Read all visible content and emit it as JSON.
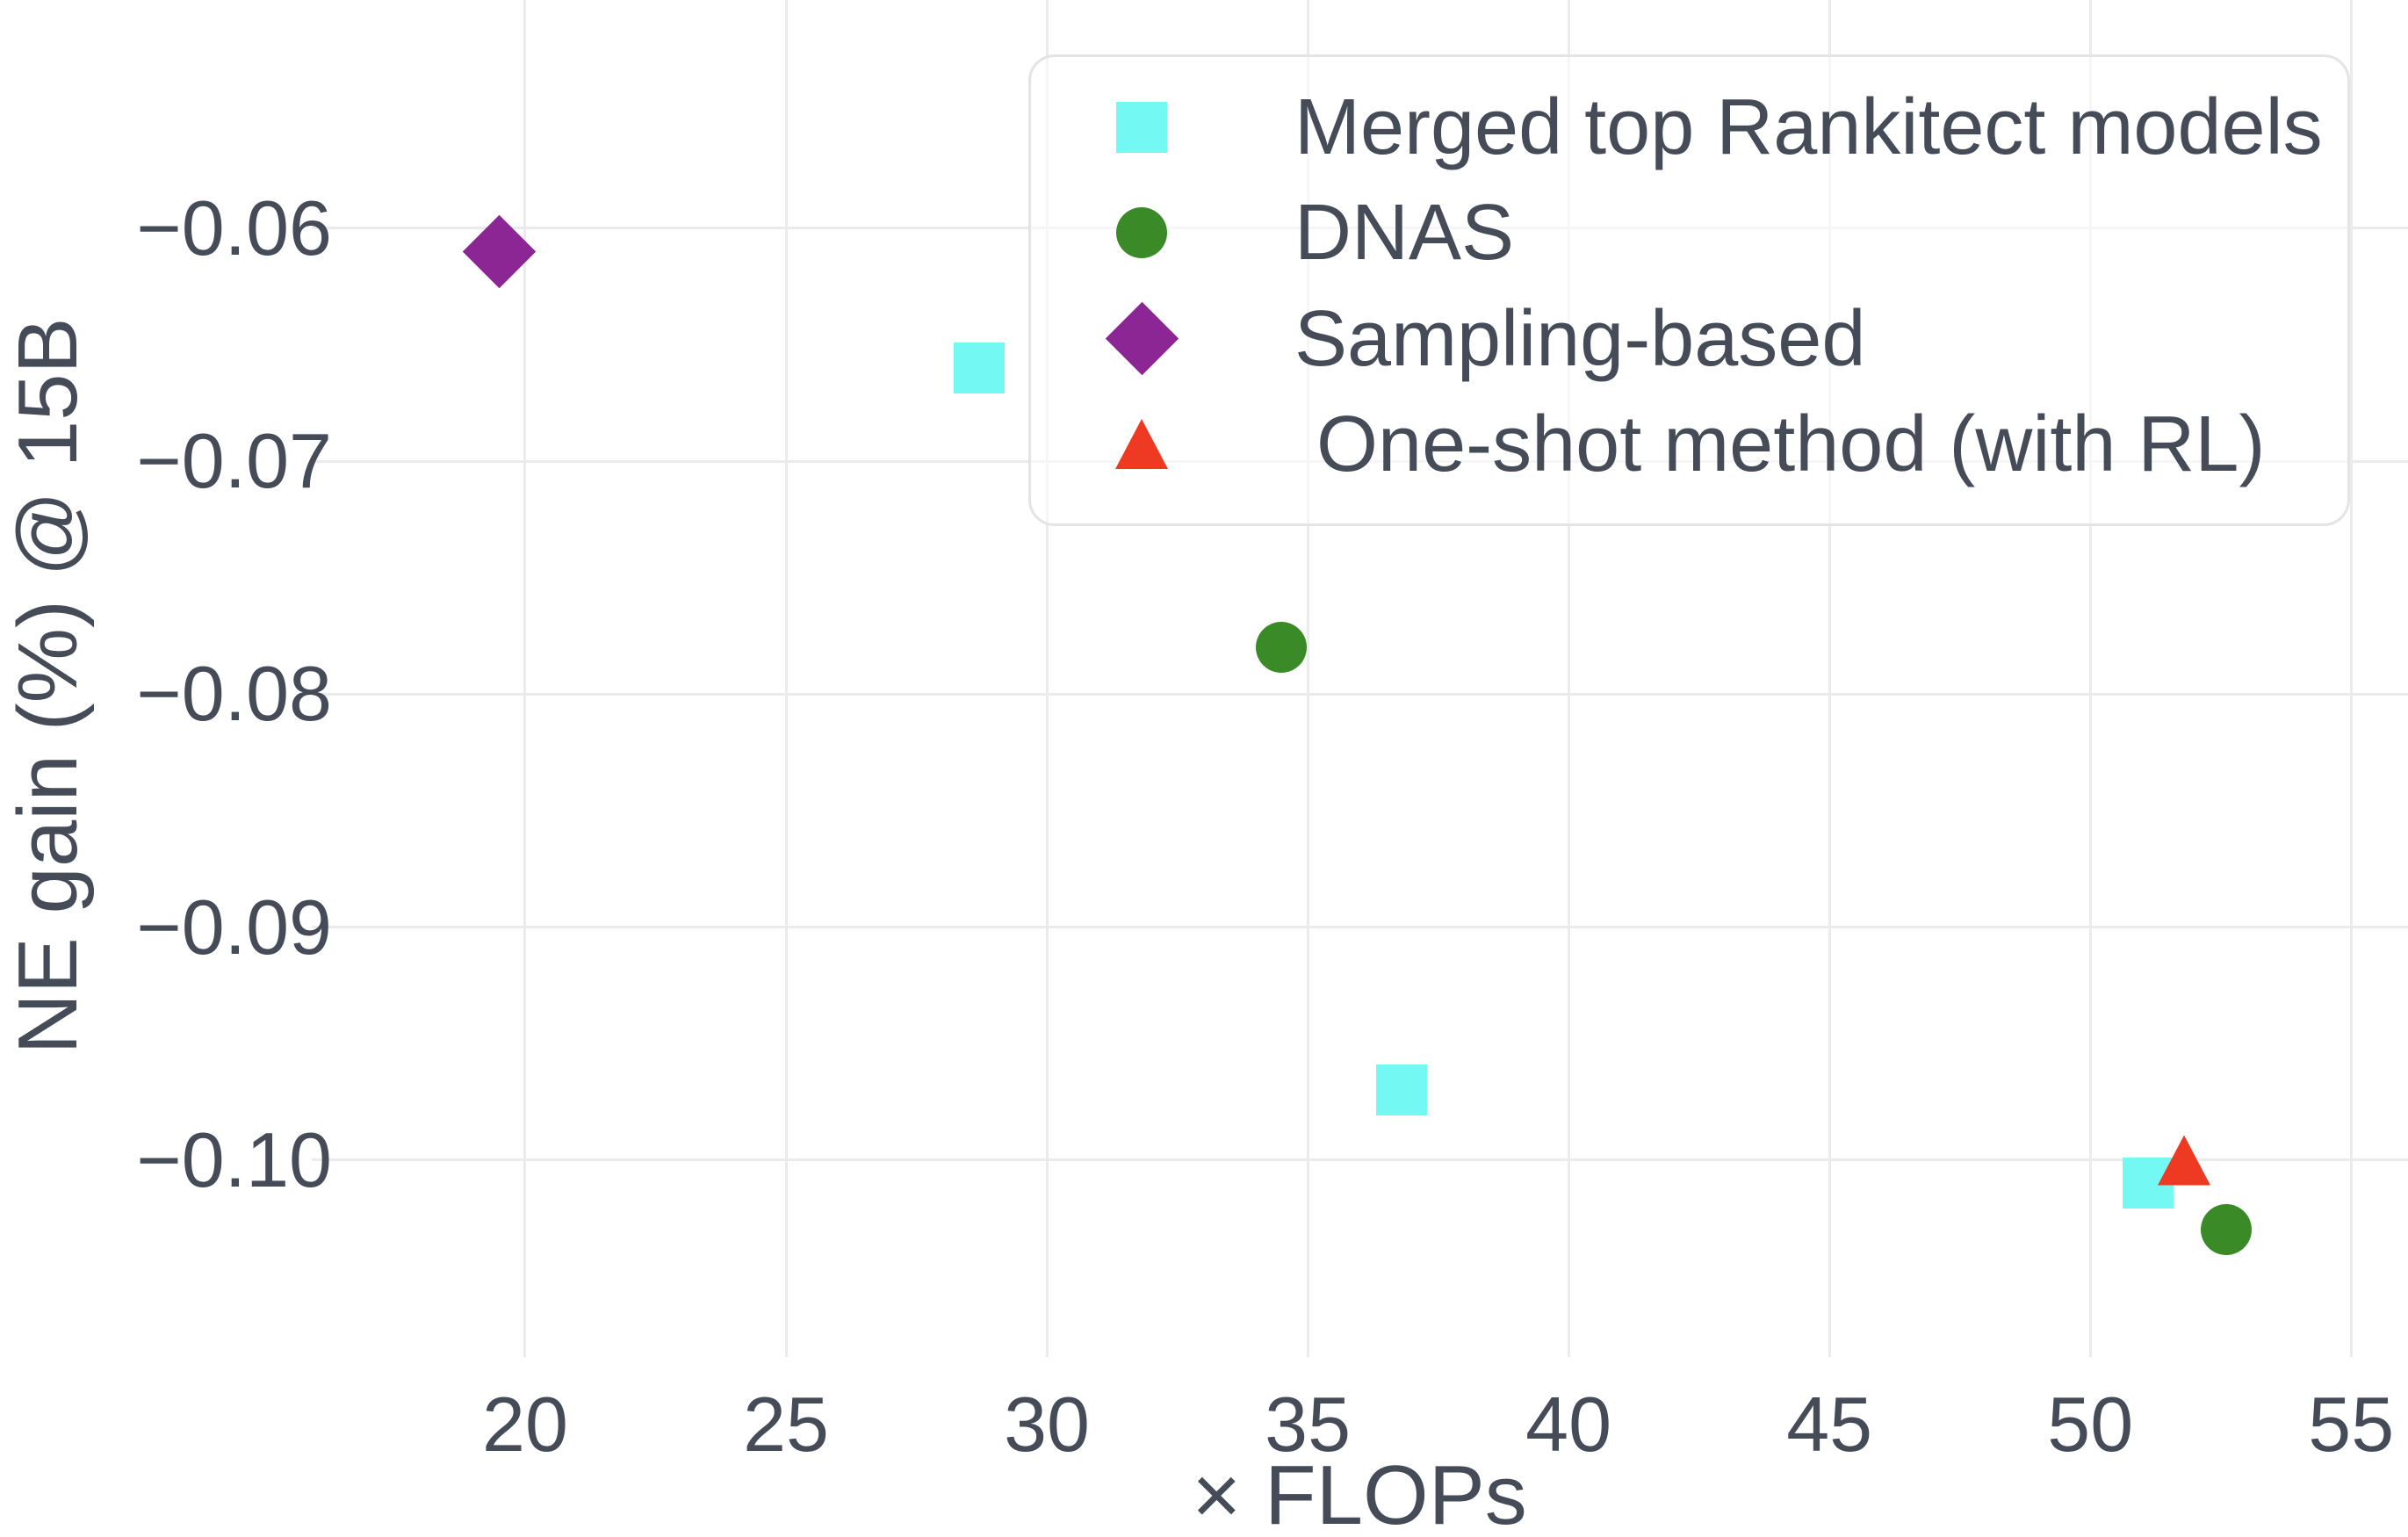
{
  "figure": {
    "background_color": "#ffffff",
    "text_color": "#454b57",
    "grid_color": "#ebebeb",
    "legend_border_color": "#e4e4e4"
  },
  "chart_data": {
    "type": "scatter",
    "title": "",
    "xlabel": "× FLOPs",
    "ylabel": "NE gain (%) @ 15B",
    "xlim": [
      15.91,
      56.09
    ],
    "ylim": [
      -0.10845,
      -0.0502
    ],
    "grid": true,
    "legend_position": "top-right",
    "x_ticks": [
      20,
      25,
      30,
      35,
      40,
      45,
      50,
      55
    ],
    "x_tick_labels": [
      "20",
      "25",
      "30",
      "35",
      "40",
      "45",
      "50",
      "55"
    ],
    "y_ticks": [
      -0.06,
      -0.07,
      -0.08,
      -0.09,
      -0.1
    ],
    "y_tick_labels": [
      "−0.06",
      "−0.07",
      "−0.08",
      "−0.09",
      "−0.10"
    ],
    "series": [
      {
        "name": "Merged top Rankitect models",
        "marker": "square",
        "color": "#73f8f4",
        "points": [
          [
            28.7,
            -0.066
          ],
          [
            36.8,
            -0.097
          ],
          [
            51.1,
            -0.101
          ]
        ]
      },
      {
        "name": "DNAS",
        "marker": "circle",
        "color": "#3a8a27",
        "points": [
          [
            34.5,
            -0.078
          ],
          [
            52.6,
            -0.103
          ]
        ]
      },
      {
        "name": "Sampling-based",
        "marker": "diamond",
        "color": "#8c2694",
        "points": [
          [
            19.5,
            -0.061
          ]
        ]
      },
      {
        "name": " One-shot method (with RL)",
        "marker": "triangle",
        "color": "#ee3a22",
        "points": [
          [
            51.8,
            -0.1
          ]
        ]
      }
    ]
  }
}
